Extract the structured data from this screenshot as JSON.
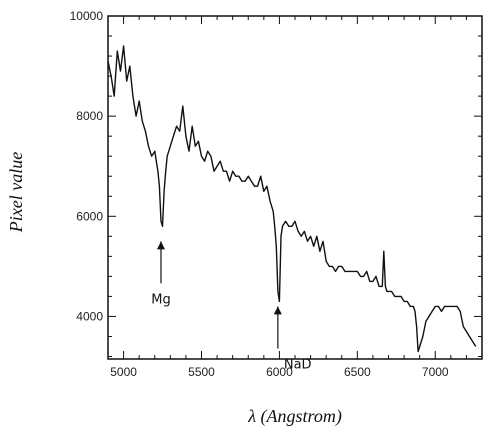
{
  "chart_data": {
    "type": "line",
    "title": "",
    "xlabel": "λ (Angstrom)",
    "ylabel": "Pixel value",
    "xlim": [
      4900,
      7300
    ],
    "ylim": [
      3150,
      10000
    ],
    "x_ticks": [
      5000,
      5500,
      6000,
      6500,
      7000
    ],
    "x_tick_labels": [
      "5000",
      "5500",
      "6000",
      "6500",
      "7000"
    ],
    "y_ticks": [
      4000,
      6000,
      8000,
      10000
    ],
    "y_tick_labels": [
      "4000",
      "6000",
      "8000",
      "10000"
    ],
    "grid": false,
    "legend": "none",
    "color": "#111111",
    "series": [
      {
        "x": [
          4900,
          4920,
          4940,
          4960,
          4980,
          5000,
          5020,
          5040,
          5060,
          5080,
          5100,
          5120,
          5140,
          5160,
          5180,
          5200,
          5210,
          5220,
          5230,
          5240,
          5250,
          5260,
          5270,
          5280,
          5300,
          5320,
          5340,
          5360,
          5380,
          5400,
          5420,
          5440,
          5460,
          5480,
          5500,
          5520,
          5540,
          5560,
          5580,
          5600,
          5620,
          5640,
          5660,
          5680,
          5700,
          5720,
          5740,
          5760,
          5780,
          5800,
          5820,
          5840,
          5860,
          5880,
          5900,
          5920,
          5940,
          5960,
          5970,
          5980,
          5990,
          6000,
          6010,
          6020,
          6040,
          6060,
          6080,
          6100,
          6120,
          6140,
          6160,
          6180,
          6200,
          6220,
          6240,
          6260,
          6280,
          6300,
          6320,
          6340,
          6360,
          6380,
          6400,
          6420,
          6440,
          6460,
          6480,
          6500,
          6520,
          6540,
          6560,
          6580,
          6600,
          6620,
          6640,
          6660,
          6670,
          6680,
          6690,
          6700,
          6720,
          6740,
          6760,
          6780,
          6800,
          6820,
          6840,
          6860,
          6870,
          6880,
          6890,
          6900,
          6920,
          6940,
          6960,
          6980,
          7000,
          7020,
          7040,
          7060,
          7080,
          7100,
          7120,
          7140,
          7160,
          7180,
          7200,
          7220,
          7240,
          7260
        ],
        "y": [
          9100,
          8800,
          8400,
          9300,
          8900,
          9400,
          8700,
          9000,
          8400,
          8000,
          8300,
          7900,
          7700,
          7400,
          7200,
          7300,
          7100,
          6900,
          6600,
          5900,
          5800,
          6500,
          6900,
          7200,
          7400,
          7600,
          7800,
          7700,
          8200,
          7600,
          7300,
          7800,
          7400,
          7500,
          7200,
          7100,
          7300,
          7200,
          6900,
          7000,
          7100,
          6900,
          6900,
          6700,
          6900,
          6800,
          6800,
          6700,
          6700,
          6800,
          6700,
          6600,
          6600,
          6800,
          6500,
          6600,
          6300,
          6100,
          5800,
          5400,
          4500,
          4300,
          5600,
          5800,
          5900,
          5800,
          5800,
          5900,
          5700,
          5600,
          5700,
          5500,
          5600,
          5400,
          5600,
          5300,
          5500,
          5100,
          5000,
          5000,
          4900,
          5000,
          5000,
          4900,
          4900,
          4900,
          4900,
          4900,
          4800,
          4800,
          4900,
          4700,
          4700,
          4800,
          4600,
          4600,
          5300,
          4600,
          4500,
          4500,
          4500,
          4400,
          4400,
          4400,
          4300,
          4300,
          4200,
          4200,
          4100,
          3800,
          3300,
          3400,
          3600,
          3900,
          4000,
          4100,
          4200,
          4200,
          4100,
          4200,
          4200,
          4200,
          4200,
          4200,
          4100,
          3800,
          3700,
          3600,
          3500,
          3400
        ]
      }
    ],
    "annotations": [
      {
        "label": "Mg",
        "x": 5240,
        "y": 5500
      },
      {
        "label": "NaD",
        "x": 5990,
        "y": 4200
      }
    ]
  }
}
